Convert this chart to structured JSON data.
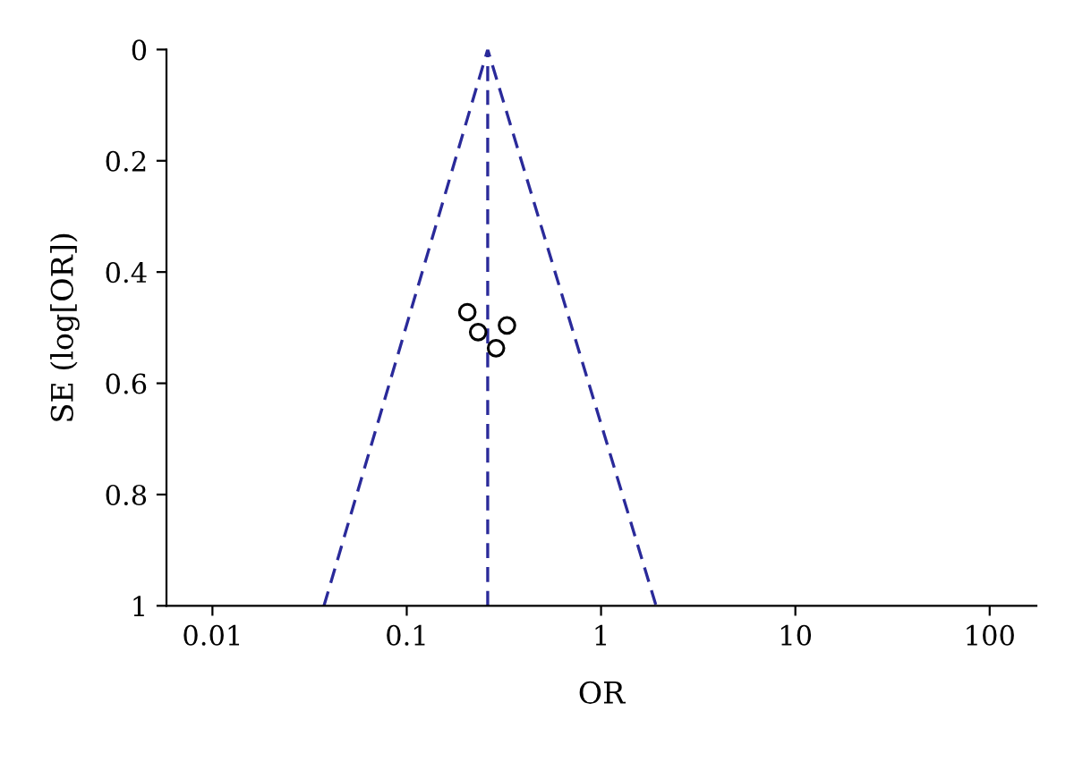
{
  "chart_data": {
    "type": "scatter",
    "xlabel": "OR",
    "ylabel": "SE (log[OR])",
    "log": "x",
    "xlim": [
      0.0058,
      174
    ],
    "xticks": [
      0.01,
      0.1,
      1,
      10,
      100
    ],
    "ylim": [
      1,
      0
    ],
    "yticks": [
      0,
      0.2,
      0.4,
      0.6,
      0.8,
      1
    ],
    "grid": false,
    "legend": false,
    "series": [
      {
        "color": "#000000",
        "marker": "circle",
        "x": [
          0.205,
          0.233,
          0.328,
          0.288
        ],
        "values": [
          0.472,
          0.508,
          0.496,
          0.537
        ]
      },
      {
        "type": "line",
        "color": "#2a2a9a",
        "line_style": "dashed",
        "marker": "none",
        "x": [
          0.0375,
          0.261,
          1.92
        ],
        "values": [
          1,
          0,
          1
        ]
      }
    ],
    "ref_lines": [
      {
        "axis": "x",
        "value": 0.261,
        "color": "#2a2a9a",
        "line_style": "dashed"
      }
    ]
  }
}
